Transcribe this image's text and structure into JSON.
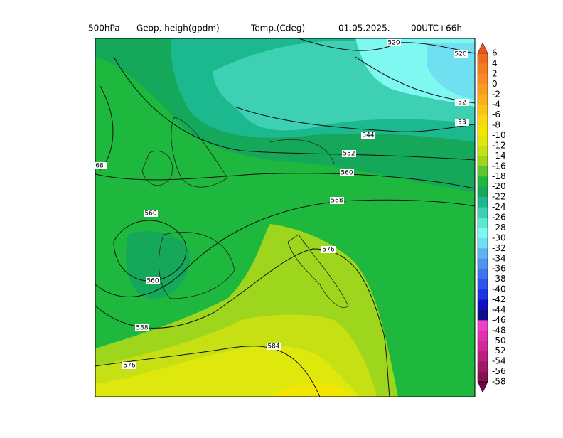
{
  "header": {
    "level": "500hPa",
    "field1": "Geop. heigh(gpdm)",
    "field2": "Temp.(Cdeg)",
    "date": "01.05.2025.",
    "run": "00UTC+66h"
  },
  "colorbar": {
    "labels": [
      6,
      4,
      2,
      0,
      -2,
      -4,
      -6,
      -8,
      -10,
      -12,
      -14,
      -16,
      -18,
      -20,
      -22,
      -24,
      -26,
      -28,
      -30,
      -32,
      -34,
      -36,
      -38,
      -40,
      -42,
      -44,
      -46,
      -48,
      -50,
      -52,
      -54,
      -56,
      -58
    ],
    "colors": [
      "#e8561c",
      "#f06a20",
      "#f47c20",
      "#f88c22",
      "#f99c20",
      "#fbaf1c",
      "#fcc21a",
      "#fdd418",
      "#f2e600",
      "#dfe80c",
      "#c6e014",
      "#9ed61e",
      "#5cc62e",
      "#1eb83e",
      "#16a85a",
      "#1cb88e",
      "#3ed0b2",
      "#5ee8d2",
      "#80f8f2",
      "#6ee0f0",
      "#5cb4f0",
      "#4c94f0",
      "#3c74ee",
      "#2c54ec",
      "#1c34e0",
      "#1010c0",
      "#0c0c8c",
      "#f040c8",
      "#e030b0",
      "#d02898",
      "#b82080",
      "#a01868",
      "#881050",
      "#700840"
    ]
  },
  "contour_labels": [
    "520",
    "520",
    "52",
    "53",
    "544",
    "552",
    "560",
    "568",
    "576",
    "584",
    "576",
    "588",
    "560",
    "560",
    "68"
  ]
}
